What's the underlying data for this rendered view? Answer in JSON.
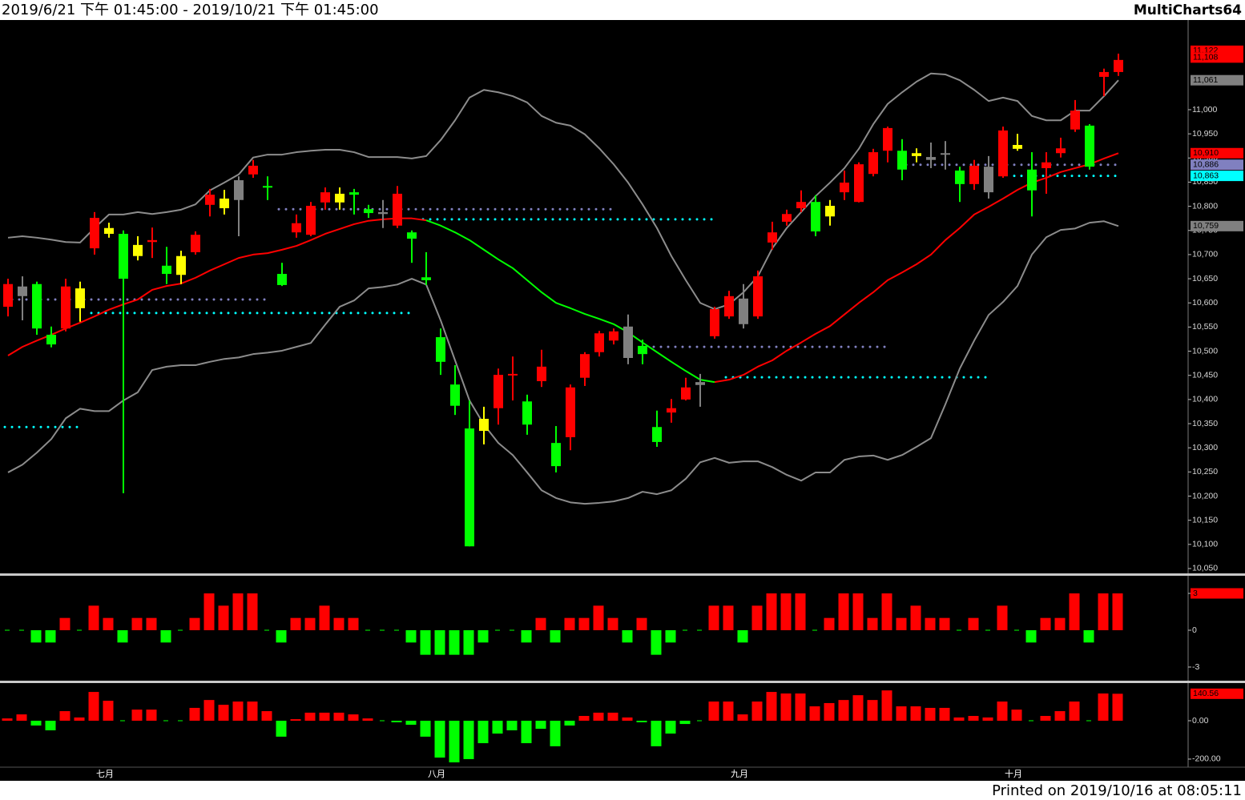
{
  "header": {
    "range": "2019/6/21 下午 01:45:00 - 2019/10/21 下午 01:45:00",
    "brand": "MultiCharts64"
  },
  "footer": "Printed on 2019/10/16 at 08:05:11",
  "chart_data": [
    {
      "type": "candlestick",
      "categories": [
        null,
        null,
        null,
        null,
        null,
        null,
        "七月",
        null,
        null,
        null,
        null,
        null,
        null,
        null,
        null,
        null,
        null,
        null,
        null,
        null,
        null,
        null,
        null,
        null,
        null,
        null,
        null,
        null,
        null,
        "八月",
        null,
        null,
        null,
        null,
        null,
        null,
        null,
        null,
        null,
        null,
        null,
        null,
        null,
        null,
        null,
        null,
        null,
        null,
        null,
        null,
        "九月",
        null,
        null,
        null,
        null,
        null,
        null,
        null,
        null,
        null,
        null,
        null,
        null,
        null,
        null,
        null,
        null,
        null,
        null,
        "十月",
        null,
        null,
        null,
        null,
        null,
        null,
        null,
        null
      ],
      "open": [
        10592,
        10634,
        10639,
        10534,
        10547,
        10589,
        10713,
        10743,
        10743,
        10697,
        10726,
        10677,
        10658,
        10705,
        10803,
        10796,
        10813,
        10866,
        10842,
        10660,
        10746,
        10741,
        10808,
        10808,
        10829,
        10794,
        10788,
        10760,
        10746,
        10653,
        10529,
        10431,
        10340,
        10335,
        10382,
        10450,
        10396,
        10438,
        10310,
        10322,
        10445,
        10498,
        10522,
        10551,
        10511,
        10343,
        10373,
        10400,
        10436,
        10531,
        10572,
        10609,
        10572,
        10725,
        10768,
        10796,
        10809,
        10779,
        10829,
        10809,
        10867,
        10915,
        10915,
        10904,
        10902,
        10910,
        10874,
        10846,
        10882,
        10862,
        10919,
        10876,
        10879,
        10910,
        10959,
        10967,
        11068,
        11078
      ],
      "high": [
        10650,
        10655,
        10644,
        10551,
        10650,
        10644,
        10788,
        10766,
        10750,
        10738,
        10756,
        10716,
        10708,
        10748,
        10836,
        10834,
        10862,
        10896,
        10862,
        10683,
        10783,
        10809,
        10839,
        10839,
        10836,
        10803,
        10813,
        10842,
        10750,
        10705,
        10547,
        10471,
        10398,
        10385,
        10464,
        10489,
        10410,
        10503,
        10345,
        10431,
        10498,
        10542,
        10547,
        10576,
        10524,
        10377,
        10401,
        10445,
        10453,
        10592,
        10625,
        10639,
        10667,
        10768,
        10793,
        10833,
        10823,
        10813,
        10874,
        10891,
        10919,
        10965,
        10939,
        10920,
        10932,
        10935,
        10882,
        10896,
        10904,
        10965,
        10950,
        10912,
        10912,
        10942,
        11020,
        10970,
        11085,
        11116
      ],
      "low": [
        10572,
        10564,
        10534,
        10508,
        10541,
        10561,
        10700,
        10735,
        10206,
        10688,
        10693,
        10639,
        10639,
        10700,
        10779,
        10783,
        10738,
        10859,
        10813,
        10635,
        10735,
        10738,
        10793,
        10793,
        10783,
        10776,
        10755,
        10755,
        10683,
        10637,
        10451,
        10368,
        10096,
        10307,
        10348,
        10398,
        10327,
        10426,
        10249,
        10295,
        10428,
        10489,
        10514,
        10473,
        10473,
        10302,
        10352,
        10398,
        10385,
        10526,
        10567,
        10547,
        10567,
        10710,
        10760,
        10788,
        10738,
        10760,
        10813,
        10808,
        10862,
        10891,
        10854,
        10891,
        10879,
        10876,
        10809,
        10834,
        10816,
        10859,
        10915,
        10779,
        10826,
        10901,
        10954,
        10876,
        11028,
        11070
      ],
      "close": [
        10639,
        10614,
        10547,
        10514,
        10634,
        10630,
        10776,
        10755,
        10650,
        10720,
        10730,
        10660,
        10697,
        10741,
        10824,
        10816,
        10854,
        10884,
        10839,
        10637,
        10765,
        10801,
        10829,
        10826,
        10824,
        10786,
        10784,
        10826,
        10733,
        10647,
        10478,
        10387,
        10096,
        10360,
        10451,
        10453,
        10348,
        10468,
        10262,
        10425,
        10494,
        10537,
        10541,
        10486,
        10494,
        10312,
        10382,
        10425,
        10430,
        10587,
        10614,
        10556,
        10655,
        10746,
        10784,
        10809,
        10748,
        10801,
        10849,
        10887,
        10912,
        10962,
        10876,
        10910,
        10896,
        10907,
        10846,
        10884,
        10829,
        10957,
        10927,
        10833,
        10891,
        10920,
        10998,
        10882,
        11078,
        11103
      ],
      "candle_colors": [
        "#ff0000",
        "#808080",
        "#00ff00",
        "#00ff00",
        "#ff0000",
        "#ffff00",
        "#ff0000",
        "#ffff00",
        "#00ff00",
        "#ffff00",
        "#ff0000",
        "#00ff00",
        "#ffff00",
        "#ff0000",
        "#ff0000",
        "#ffff00",
        "#808080",
        "#ff0000",
        "#00ff00",
        "#00ff00",
        "#ff0000",
        "#ff0000",
        "#ff0000",
        "#ffff00",
        "#00ff00",
        "#00ff00",
        "#808080",
        "#ff0000",
        "#00ff00",
        "#00ff00",
        "#00ff00",
        "#00ff00",
        "#00ff00",
        "#ffff00",
        "#ff0000",
        "#ff0000",
        "#00ff00",
        "#ff0000",
        "#00ff00",
        "#ff0000",
        "#ff0000",
        "#ff0000",
        "#ff0000",
        "#808080",
        "#00ff00",
        "#00ff00",
        "#ff0000",
        "#ff0000",
        "#808080",
        "#ff0000",
        "#ff0000",
        "#808080",
        "#ff0000",
        "#ff0000",
        "#ff0000",
        "#ff0000",
        "#00ff00",
        "#ffff00",
        "#ff0000",
        "#ff0000",
        "#ff0000",
        "#ff0000",
        "#00ff00",
        "#ffff00",
        "#808080",
        "#808080",
        "#00ff00",
        "#ff0000",
        "#808080",
        "#ff0000",
        "#ffff00",
        "#00ff00",
        "#ff0000",
        "#ff0000",
        "#ff0000",
        "#00ff00",
        "#ff0000",
        "#ff0000"
      ],
      "lines": [
        {
          "color": "#ff0000",
          "values": [
            10491,
            10509,
            10522,
            10534,
            10547,
            10559,
            10572,
            10586,
            10597,
            10607,
            10627,
            10635,
            10640,
            10652,
            10667,
            10680,
            10693,
            10700,
            10703,
            10710,
            10718,
            10730,
            10743,
            10753,
            10763,
            10770,
            10773,
            10775,
            10775,
            10771,
            null,
            null,
            null,
            null,
            null,
            null,
            null,
            null,
            null,
            null,
            null,
            null,
            null,
            null,
            null,
            null,
            null,
            null,
            null,
            10436,
            10441,
            10451,
            10468,
            10481,
            10501,
            10518,
            10536,
            10552,
            10576,
            10600,
            10622,
            10647,
            10663,
            10680,
            10700,
            10730,
            10755,
            10783,
            10799,
            10816,
            10834,
            10849,
            10859,
            10871,
            10879,
            10887,
            10899,
            10910
          ]
        },
        {
          "color": "#00ff00",
          "values": [
            null,
            null,
            null,
            null,
            null,
            null,
            null,
            null,
            null,
            null,
            null,
            null,
            null,
            null,
            null,
            null,
            null,
            null,
            null,
            null,
            null,
            null,
            null,
            null,
            null,
            null,
            null,
            null,
            null,
            10771,
            10760,
            10746,
            10730,
            10710,
            10690,
            10672,
            10647,
            10622,
            10600,
            10589,
            10577,
            10567,
            10556,
            10539,
            10518,
            10498,
            10478,
            10459,
            10441,
            10436,
            null,
            null,
            null,
            null,
            null,
            null,
            null,
            null,
            null,
            null,
            null,
            null,
            null,
            null,
            null,
            null,
            null,
            null,
            null,
            null,
            null,
            null,
            null,
            null,
            null,
            null,
            null,
            null
          ]
        },
        {
          "color": "#8c8c8c",
          "values": [
            10735,
            10738,
            10735,
            10731,
            10726,
            10725,
            10755,
            10783,
            10783,
            10788,
            10784,
            10788,
            10793,
            10804,
            10833,
            10849,
            10866,
            10901,
            10907,
            10907,
            10912,
            10915,
            10917,
            10917,
            10912,
            10902,
            10902,
            10902,
            10899,
            10904,
            10937,
            10978,
            11025,
            11041,
            11036,
            11028,
            11015,
            10987,
            10973,
            10967,
            10949,
            10920,
            10887,
            10849,
            10804,
            10755,
            10697,
            10647,
            10600,
            10587,
            10597,
            10622,
            10655,
            10713,
            10755,
            10788,
            10821,
            10849,
            10879,
            10919,
            10970,
            11012,
            11036,
            11058,
            11075,
            11073,
            11061,
            11041,
            11018,
            11025,
            11018,
            10987,
            10978,
            10978,
            10998,
            10998,
            11028,
            11061
          ]
        },
        {
          "color": "#8c8c8c",
          "values": [
            10249,
            10265,
            10290,
            10318,
            10361,
            10381,
            10376,
            10376,
            10398,
            10415,
            10461,
            10468,
            10471,
            10471,
            10478,
            10484,
            10487,
            10494,
            10497,
            10501,
            10509,
            10517,
            10555,
            10592,
            10605,
            10630,
            10633,
            10638,
            10650,
            10638,
            10564,
            10481,
            10398,
            10348,
            10310,
            10285,
            10249,
            10212,
            10196,
            10187,
            10184,
            10186,
            10189,
            10196,
            10209,
            10204,
            10212,
            10236,
            10270,
            10279,
            10269,
            10272,
            10272,
            10260,
            10244,
            10232,
            10249,
            10249,
            10275,
            10282,
            10284,
            10275,
            10285,
            10302,
            10320,
            10390,
            10464,
            10522,
            10575,
            10602,
            10635,
            10700,
            10736,
            10751,
            10754,
            10766,
            10769,
            10759
          ]
        }
      ],
      "levels": [
        {
          "value": 10607,
          "color": "#8080c0",
          "start": 0,
          "end": 18
        },
        {
          "value": 10579,
          "color": "#00ffff",
          "start": 6,
          "end": 28
        },
        {
          "value": 10343,
          "color": "#00ffff",
          "start": 0,
          "end": 5
        },
        {
          "value": 10794,
          "color": "#8080c0",
          "start": 19,
          "end": 42
        },
        {
          "value": 10773,
          "color": "#00ffff",
          "start": 29,
          "end": 49
        },
        {
          "value": 10509,
          "color": "#8080c0",
          "start": 45,
          "end": 61
        },
        {
          "value": 10446,
          "color": "#00ffff",
          "start": 50,
          "end": 68
        },
        {
          "value": 10886,
          "color": "#8080c0",
          "start": 62,
          "end": 77
        },
        {
          "value": 10863,
          "color": "#00ffff",
          "start": 70,
          "end": 77
        }
      ],
      "tags": [
        {
          "value": 11122,
          "label": "11,122",
          "color": "#ff0000"
        },
        {
          "value": 11108,
          "label": "11,108",
          "color": "#ff0000"
        },
        {
          "value": 11061,
          "label": "11,061",
          "color": "#808080"
        },
        {
          "value": 10910,
          "label": "10,910",
          "color": "#ff0000"
        },
        {
          "value": 10886,
          "label": "10,886",
          "color": "#8080c0"
        },
        {
          "value": 10863,
          "label": "10,863",
          "color": "#00ffff"
        },
        {
          "value": 10759,
          "label": "10,759",
          "color": "#808080"
        }
      ],
      "ylim": [
        10040,
        11184
      ],
      "yticks": [
        {
          "value": 10050,
          "label": "10,050"
        },
        {
          "value": 10100,
          "label": "10,100"
        },
        {
          "value": 10150,
          "label": "10,150"
        },
        {
          "value": 10200,
          "label": "10,200"
        },
        {
          "value": 10250,
          "label": "10,250"
        },
        {
          "value": 10300,
          "label": "10,300"
        },
        {
          "value": 10350,
          "label": "10,350"
        },
        {
          "value": 10400,
          "label": "10,400"
        },
        {
          "value": 10450,
          "label": "10,450"
        },
        {
          "value": 10500,
          "label": "10,500"
        },
        {
          "value": 10550,
          "label": "10,550"
        },
        {
          "value": 10600,
          "label": "10,600"
        },
        {
          "value": 10650,
          "label": "10,650"
        },
        {
          "value": 10700,
          "label": "10,700"
        },
        {
          "value": 10750,
          "label": "10,750"
        },
        {
          "value": 10800,
          "label": "10,800"
        },
        {
          "value": 10850,
          "label": "10,850"
        },
        {
          "value": 10900,
          "label": "10,900"
        },
        {
          "value": 10950,
          "label": "10,950"
        },
        {
          "value": 11000,
          "label": "11,000"
        }
      ]
    },
    {
      "type": "bar",
      "values": [
        0,
        0,
        -1,
        -1,
        1,
        0,
        2,
        1,
        -1,
        1,
        1,
        -1,
        0,
        1,
        3,
        2,
        3,
        3,
        0,
        -1,
        1,
        1,
        2,
        1,
        1,
        0,
        0,
        0,
        -1,
        -2,
        -2,
        -2,
        -2,
        -1,
        0,
        0,
        -1,
        1,
        -1,
        1,
        1,
        2,
        1,
        -1,
        1,
        -2,
        -1,
        0,
        0,
        2,
        2,
        -1,
        2,
        3,
        3,
        3,
        0,
        1,
        3,
        3,
        1,
        3,
        1,
        2,
        1,
        1,
        0,
        1,
        0,
        2,
        0,
        -1,
        1,
        1,
        3,
        -1,
        3,
        3
      ],
      "up_color": "#ff0000",
      "down_color": "#00ff00",
      "ylim": [
        -3.98,
        4.37
      ],
      "yticks": [
        3,
        0,
        -3
      ],
      "tags": [
        {
          "value": 3,
          "color": "#ff0000"
        }
      ]
    },
    {
      "type": "bar",
      "values": [
        12,
        33,
        -25,
        -50,
        50,
        17,
        150,
        104,
        0,
        58,
        58,
        0,
        0,
        67,
        108,
        83,
        100,
        100,
        50,
        -83,
        8,
        42,
        42,
        42,
        33,
        12,
        0,
        -8,
        -21,
        -83,
        -192,
        -217,
        -200,
        -117,
        -67,
        -50,
        -117,
        -42,
        -133,
        -25,
        25,
        42,
        42,
        17,
        -8,
        -133,
        -67,
        -17,
        0,
        100,
        100,
        33,
        100,
        150,
        142,
        142,
        75,
        92,
        108,
        133,
        108,
        158,
        75,
        75,
        67,
        67,
        17,
        25,
        17,
        100,
        58,
        0,
        25,
        50,
        100,
        0,
        142,
        140.56
      ],
      "up_color": "#ff0000",
      "down_color": "#00ff00",
      "ylim": [
        -242,
        192
      ],
      "yticks": [
        {
          "value": 0,
          "label": "0.00"
        },
        {
          "value": -200,
          "label": "-200.00"
        }
      ],
      "tags": [
        {
          "value": 140.56,
          "color": "#ff0000"
        }
      ]
    }
  ]
}
